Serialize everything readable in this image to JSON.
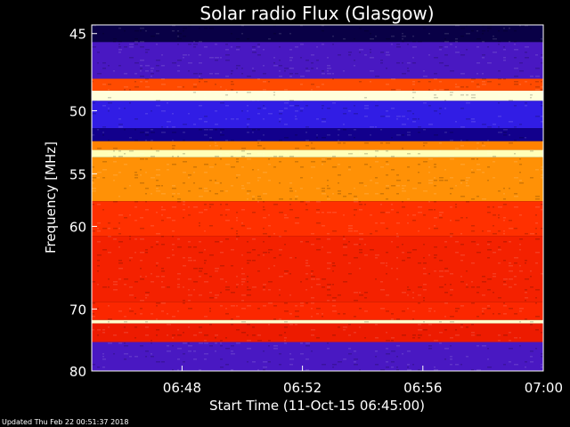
{
  "chart_data": {
    "type": "heatmap",
    "title": "Solar radio Flux (Glasgow)",
    "xlabel": "Start Time (11-Oct-15 06:45:00)",
    "ylabel": "Frequency [MHz]",
    "x_ticks": [
      "06:48",
      "06:52",
      "06:56",
      "07:00"
    ],
    "y_ticks": [
      "45",
      "50",
      "55",
      "60",
      "70",
      "80"
    ],
    "y_scale": "reciprocal",
    "x_range": [
      "06:45:00",
      "07:00:00"
    ],
    "y_range_mhz": [
      44.5,
      80
    ],
    "colormap": [
      "#000000",
      "#1a00c8",
      "#2020ff",
      "#cc0000",
      "#ff2a00",
      "#ff8c00",
      "#ffff99",
      "#ffffff"
    ],
    "bands": [
      {
        "from_mhz": 44.5,
        "to_mhz": 45.5,
        "level": 0.05
      },
      {
        "from_mhz": 45.5,
        "to_mhz": 47.8,
        "level": 0.32
      },
      {
        "from_mhz": 47.8,
        "to_mhz": 48.6,
        "level": 0.62
      },
      {
        "from_mhz": 48.6,
        "to_mhz": 49.3,
        "level": 0.95
      },
      {
        "from_mhz": 49.3,
        "to_mhz": 51.3,
        "level": 0.3
      },
      {
        "from_mhz": 51.3,
        "to_mhz": 52.3,
        "level": 0.1
      },
      {
        "from_mhz": 52.3,
        "to_mhz": 53.0,
        "level": 0.7
      },
      {
        "from_mhz": 53.0,
        "to_mhz": 53.6,
        "level": 0.9
      },
      {
        "from_mhz": 53.6,
        "to_mhz": 57.5,
        "level": 0.72
      },
      {
        "from_mhz": 57.5,
        "to_mhz": 61.0,
        "level": 0.58
      },
      {
        "from_mhz": 61.0,
        "to_mhz": 69.0,
        "level": 0.54
      },
      {
        "from_mhz": 69.0,
        "to_mhz": 71.6,
        "level": 0.56
      },
      {
        "from_mhz": 71.6,
        "to_mhz": 72.1,
        "level": 0.93
      },
      {
        "from_mhz": 72.1,
        "to_mhz": 75.0,
        "level": 0.52
      },
      {
        "from_mhz": 75.0,
        "to_mhz": 80.0,
        "level": 0.32
      }
    ],
    "footer": "Updated Thu Feb 22 00:51:37 2018"
  }
}
